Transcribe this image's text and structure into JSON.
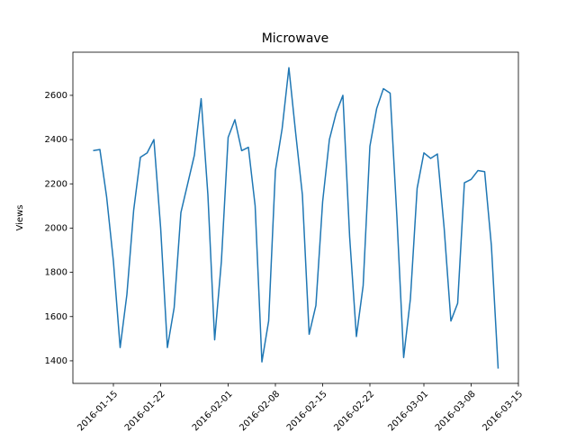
{
  "chart_data": {
    "type": "line",
    "title": "Microwave",
    "y_label": "Views",
    "x": [
      "2016-01-12",
      "2016-01-13",
      "2016-01-14",
      "2016-01-15",
      "2016-01-16",
      "2016-01-17",
      "2016-01-18",
      "2016-01-19",
      "2016-01-20",
      "2016-01-21",
      "2016-01-22",
      "2016-01-23",
      "2016-01-24",
      "2016-01-25",
      "2016-01-26",
      "2016-01-27",
      "2016-01-28",
      "2016-01-29",
      "2016-01-30",
      "2016-01-31",
      "2016-02-01",
      "2016-02-02",
      "2016-02-03",
      "2016-02-04",
      "2016-02-05",
      "2016-02-06",
      "2016-02-07",
      "2016-02-08",
      "2016-02-09",
      "2016-02-10",
      "2016-02-11",
      "2016-02-12",
      "2016-02-13",
      "2016-02-14",
      "2016-02-15",
      "2016-02-16",
      "2016-02-17",
      "2016-02-18",
      "2016-02-19",
      "2016-02-20",
      "2016-02-21",
      "2016-02-22",
      "2016-02-23",
      "2016-02-24",
      "2016-02-25",
      "2016-02-26",
      "2016-02-27",
      "2016-02-28",
      "2016-02-29",
      "2016-03-01",
      "2016-03-02",
      "2016-03-03",
      "2016-03-04",
      "2016-03-05",
      "2016-03-06",
      "2016-03-07",
      "2016-03-08",
      "2016-03-09",
      "2016-03-10",
      "2016-03-11",
      "2016-03-12"
    ],
    "series": [
      {
        "color": "#1f77b4",
        "values": [
          2350,
          2355,
          2140,
          1850,
          1460,
          1700,
          2080,
          2320,
          2340,
          2400,
          2000,
          1460,
          1640,
          2070,
          2200,
          2330,
          2585,
          2150,
          1495,
          1850,
          2410,
          2490,
          2350,
          2365,
          2100,
          1395,
          1580,
          2260,
          2450,
          2725,
          2430,
          2150,
          1520,
          1650,
          2120,
          2400,
          2520,
          2600,
          1960,
          1510,
          1740,
          2370,
          2540,
          2630,
          2610,
          2050,
          1415,
          1680,
          2180,
          2340,
          2315,
          2335,
          2000,
          1580,
          1660,
          2205,
          2220,
          2260,
          2255,
          1920,
          1365
        ]
      }
    ],
    "xlim": [
      "2016-01-09",
      "2016-03-15"
    ],
    "xticks": [
      "2016-01-15",
      "2016-01-22",
      "2016-02-01",
      "2016-02-08",
      "2016-02-15",
      "2016-02-22",
      "2016-03-01",
      "2016-03-08",
      "2016-03-15"
    ],
    "ylim": [
      1298,
      2795
    ],
    "yticks": [
      1400,
      1600,
      1800,
      2000,
      2200,
      2400,
      2600
    ]
  }
}
